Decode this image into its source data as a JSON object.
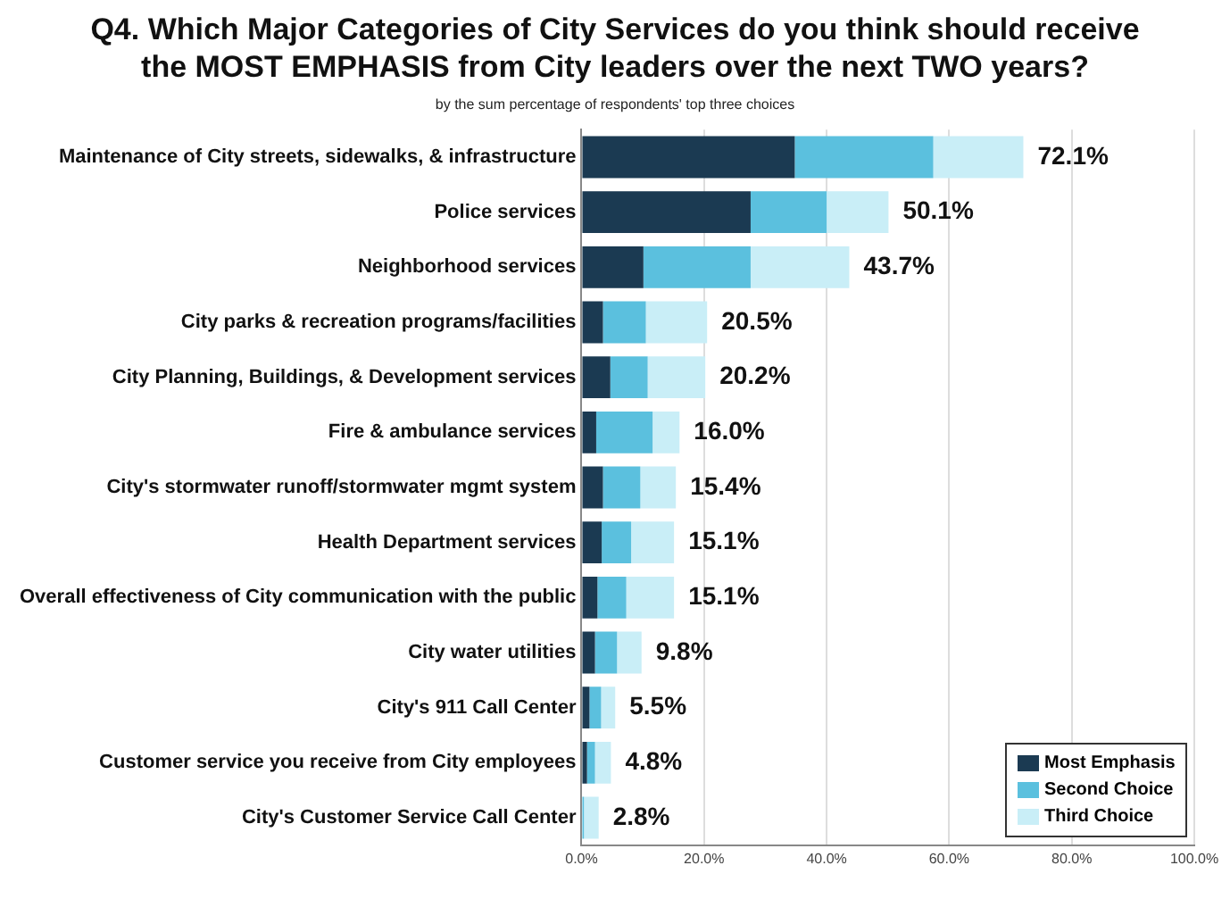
{
  "chart_data": {
    "type": "bar",
    "orientation": "horizontal",
    "stacked": true,
    "title": "Q4. Which Major Categories of City Services do you think should receive the MOST EMPHASIS from City leaders over the next TWO years?",
    "subtitle": "by the sum percentage of respondents' top three choices",
    "categories": [
      "Maintenance of City streets, sidewalks, & infrastructure",
      "Police services",
      "Neighborhood services",
      "City parks & recreation programs/facilities",
      "City Planning, Buildings, & Development services",
      "Fire & ambulance services",
      "City's stormwater runoff/stormwater mgmt system",
      "Health Department services",
      "Overall effectiveness of City communication with the public",
      "City water utilities",
      "City's 911 Call Center",
      "Customer service you receive from City employees",
      "City's Customer Service Call Center"
    ],
    "series": [
      {
        "name": "Most Emphasis",
        "color": "#1b3a52",
        "values": [
          34.8,
          27.6,
          10.1,
          3.5,
          4.7,
          2.4,
          3.5,
          3.3,
          2.6,
          2.2,
          1.3,
          0.9,
          0.0
        ]
      },
      {
        "name": "Second Choice",
        "color": "#5bc0de",
        "values": [
          22.6,
          12.4,
          17.5,
          7.0,
          6.1,
          9.2,
          6.1,
          4.8,
          4.7,
          3.6,
          1.9,
          1.3,
          0.4
        ]
      },
      {
        "name": "Third Choice",
        "color": "#c9eef7",
        "values": [
          14.7,
          10.1,
          16.1,
          10.0,
          9.4,
          4.4,
          5.8,
          7.0,
          7.8,
          4.0,
          2.3,
          2.6,
          2.4
        ]
      }
    ],
    "totals": [
      "72.1%",
      "50.1%",
      "43.7%",
      "20.5%",
      "20.2%",
      "16.0%",
      "15.4%",
      "15.1%",
      "15.1%",
      "9.8%",
      "5.5%",
      "4.8%",
      "2.8%"
    ],
    "xlim": [
      0,
      100
    ],
    "xticks": [
      {
        "value": 0,
        "label": "0.0%"
      },
      {
        "value": 20,
        "label": "20.0%"
      },
      {
        "value": 40,
        "label": "40.0%"
      },
      {
        "value": 60,
        "label": "60.0%"
      },
      {
        "value": 80,
        "label": "80.0%"
      },
      {
        "value": 100,
        "label": "100.0%"
      }
    ],
    "grid": "x",
    "legend": "bottom right"
  }
}
